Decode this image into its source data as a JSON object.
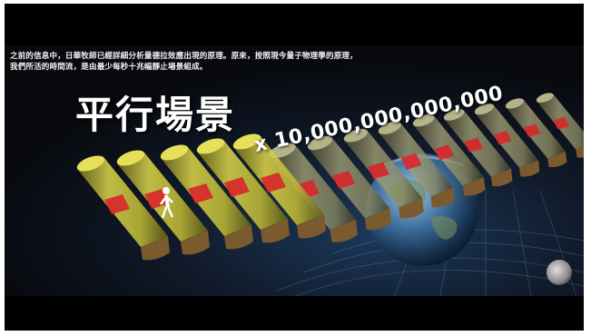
{
  "caption": {
    "line1": "之前的信息中，日華牧師已經詳細分析量德拉效應出現的原理。原來，按照現今量子物理學的原理，",
    "line2": "我們所活的時間流，是由最少每秒十兆幅靜止場景組成。"
  },
  "title": "平行場景",
  "multiplier": "x 10,000,000,000,000",
  "colors": {
    "background": "#000000",
    "cylinder_yellow": "#c9c43a",
    "cylinder_gray": "#8f8f6a",
    "frame_red": "#d8262a",
    "text": "#ffffff"
  }
}
